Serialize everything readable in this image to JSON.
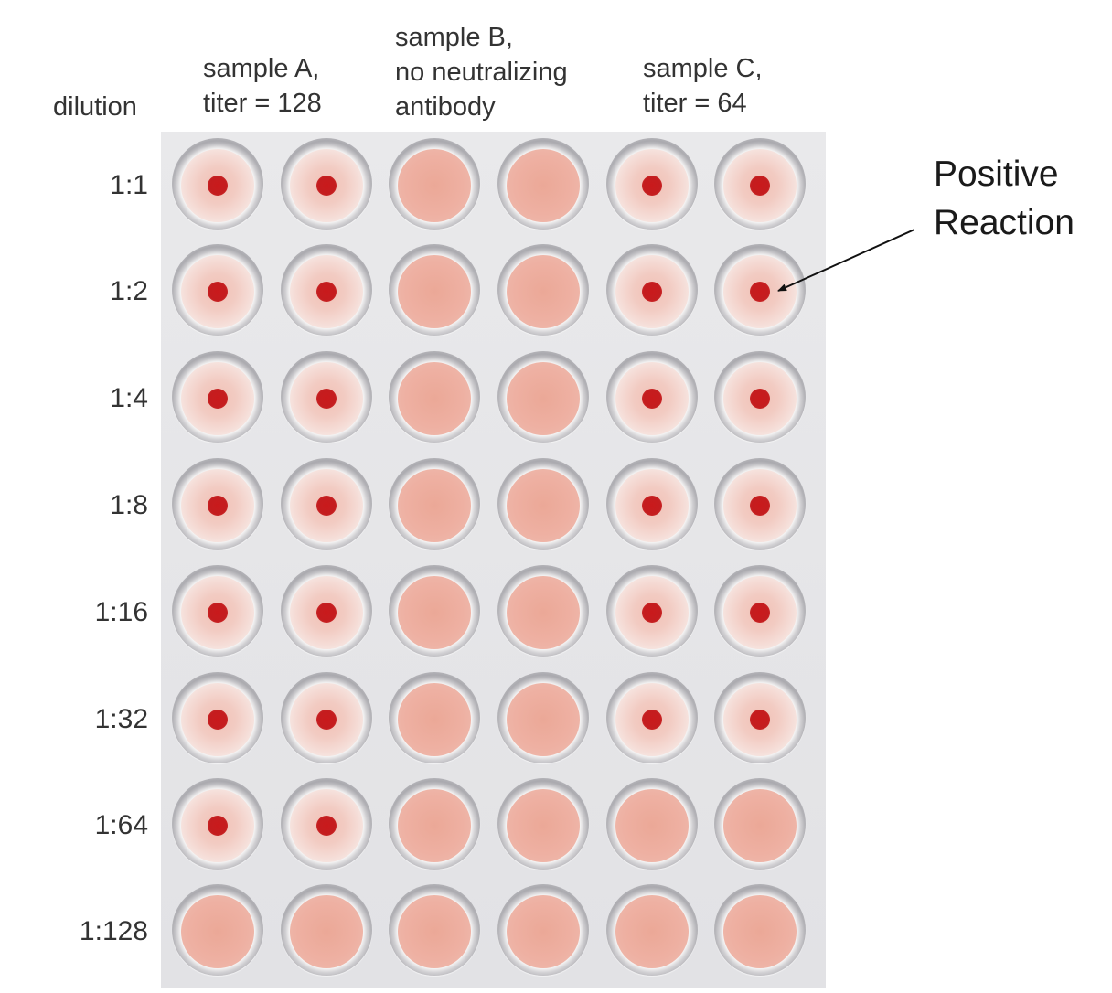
{
  "header": {
    "dilution_label": "dilution",
    "columns": [
      {
        "label": "sample A,\ntiter = 128"
      },
      {
        "label": "sample B,\nno neutralizing\nantibody"
      },
      {
        "label": "sample C,\ntiter = 64"
      }
    ]
  },
  "rows": [
    {
      "dilution": "1:1"
    },
    {
      "dilution": "1:2"
    },
    {
      "dilution": "1:4"
    },
    {
      "dilution": "1:8"
    },
    {
      "dilution": "1:16"
    },
    {
      "dilution": "1:32"
    },
    {
      "dilution": "1:64"
    },
    {
      "dilution": "1:128"
    }
  ],
  "wells": [
    [
      "button",
      "button",
      "diffuse",
      "diffuse",
      "button",
      "button"
    ],
    [
      "button",
      "button",
      "diffuse",
      "diffuse",
      "button",
      "button"
    ],
    [
      "button",
      "button",
      "diffuse",
      "diffuse",
      "button",
      "button"
    ],
    [
      "button",
      "button",
      "diffuse",
      "diffuse",
      "button",
      "button"
    ],
    [
      "button",
      "button",
      "diffuse",
      "diffuse",
      "button",
      "button"
    ],
    [
      "button",
      "button",
      "diffuse",
      "diffuse",
      "button",
      "button"
    ],
    [
      "button",
      "button",
      "diffuse",
      "diffuse",
      "diffuse",
      "diffuse"
    ],
    [
      "diffuse",
      "diffuse",
      "diffuse",
      "diffuse",
      "diffuse",
      "diffuse"
    ]
  ],
  "annotation": {
    "label": "Positive\nReaction"
  },
  "colors": {
    "plate": "#e6e6e8",
    "button_dot": "#c41d1f",
    "diffuse_fill": "#eeb0a2",
    "halo_fill": "#f5dbd5"
  }
}
